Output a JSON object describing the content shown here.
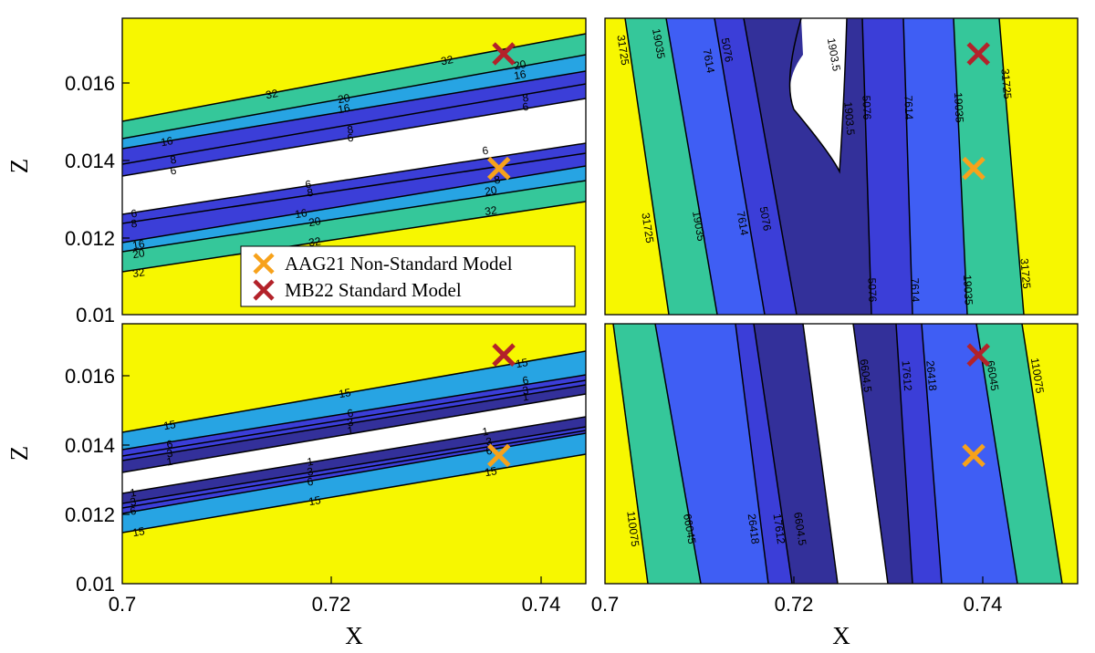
{
  "colors": {
    "yellow": "#f7f700",
    "teal": "#35c79a",
    "lightblue": "#27a4e3",
    "blue": "#3f5ef4",
    "medblue": "#3b3ed8",
    "darkblue": "#33309a",
    "white": "#ffffff",
    "aag21": "#f7a21b",
    "mb22": "#b3222a"
  },
  "axes": {
    "xlabel": "X",
    "ylabel": "Z",
    "xticks": [
      "0.7",
      "0.72",
      "0.74"
    ],
    "yticks": [
      "0.01",
      "0.012",
      "0.014",
      "0.016"
    ]
  },
  "legend": {
    "entries": [
      {
        "label": "AAG21 Non-Standard Model",
        "marker": "x",
        "color": "#f7a21b"
      },
      {
        "label": "MB22 Standard Model",
        "marker": "x",
        "color": "#b3222a"
      }
    ]
  },
  "chart_data": [
    {
      "type": "contour",
      "panel": "top-left",
      "xlim": [
        0.7,
        0.748
      ],
      "ylim": [
        0.01,
        0.0175
      ],
      "contour_levels": [
        "6",
        "8",
        "16",
        "20",
        "32"
      ],
      "markers": [
        {
          "name": "AAG21 Non-Standard Model",
          "x": 0.739,
          "y": 0.0137
        },
        {
          "name": "MB22 Standard Model",
          "x": 0.7395,
          "y": 0.0166
        }
      ]
    },
    {
      "type": "contour",
      "panel": "top-right",
      "xlim": [
        0.7,
        0.75
      ],
      "ylim": [
        0.01,
        0.0175
      ],
      "contour_levels": [
        "1903.5",
        "5076",
        "7614",
        "19035",
        "31725"
      ],
      "markers": [
        {
          "name": "AAG21 Non-Standard Model",
          "x": 0.739,
          "y": 0.0137
        },
        {
          "name": "MB22 Standard Model",
          "x": 0.7395,
          "y": 0.0166
        }
      ]
    },
    {
      "type": "contour",
      "panel": "bottom-left",
      "xlim": [
        0.7,
        0.748
      ],
      "ylim": [
        0.01,
        0.0175
      ],
      "contour_levels": [
        "1",
        "3",
        "6",
        "15"
      ],
      "markers": [
        {
          "name": "AAG21 Non-Standard Model",
          "x": 0.739,
          "y": 0.0137
        },
        {
          "name": "MB22 Standard Model",
          "x": 0.7395,
          "y": 0.0166
        }
      ]
    },
    {
      "type": "contour",
      "panel": "bottom-right",
      "xlim": [
        0.7,
        0.75
      ],
      "ylim": [
        0.01,
        0.0175
      ],
      "contour_levels": [
        "6604.5",
        "17612",
        "26418",
        "66045",
        "110075"
      ],
      "markers": [
        {
          "name": "AAG21 Non-Standard Model",
          "x": 0.739,
          "y": 0.0137
        },
        {
          "name": "MB22 Standard Model",
          "x": 0.7395,
          "y": 0.0166
        }
      ]
    }
  ]
}
